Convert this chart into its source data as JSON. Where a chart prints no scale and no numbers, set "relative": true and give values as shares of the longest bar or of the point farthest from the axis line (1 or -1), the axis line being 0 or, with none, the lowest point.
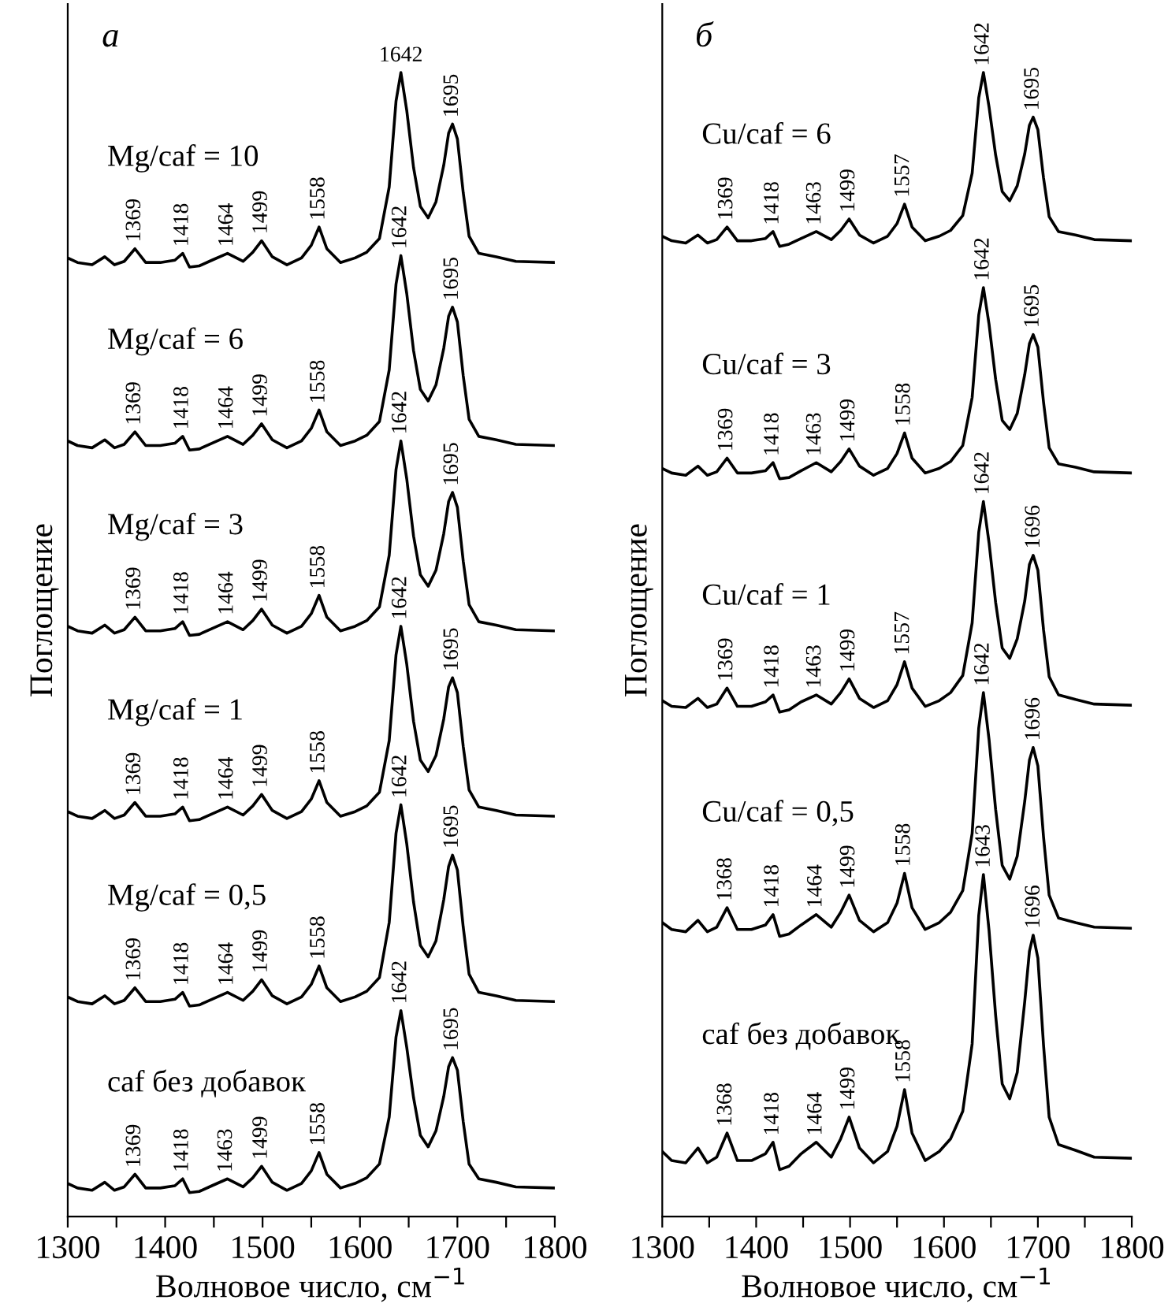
{
  "chart_data": [
    {
      "type": "line",
      "title": "а",
      "xlabel": "Волновое число, см$^{−1}$",
      "ylabel": "Поглощение",
      "relative": true,
      "xlim": [
        1300,
        1800
      ],
      "xticks": [
        1300,
        {
          "value": 1350,
          "label": null
        },
        1400,
        {
          "value": 1450,
          "label": null
        },
        1500,
        {
          "value": 1550,
          "label": null
        },
        1600,
        {
          "value": 1650,
          "label": null
        },
        1700,
        {
          "value": 1750,
          "label": null
        },
        1800
      ],
      "x": [
        1300,
        1310,
        1325,
        1338,
        1348,
        1358,
        1369,
        1380,
        1395,
        1410,
        1418,
        1425,
        1435,
        1448,
        1464,
        1480,
        1490,
        1499,
        1510,
        1525,
        1540,
        1550,
        1558,
        1566,
        1580,
        1595,
        1607,
        1620,
        1630,
        1637,
        1642,
        1648,
        1655,
        1662,
        1670,
        1678,
        1686,
        1691,
        1695,
        1700,
        1706,
        1712,
        1722,
        1740,
        1760,
        1800
      ],
      "series": [
        {
          "name": "Mg/caf = 10",
          "color": "#000000",
          "values": [
            0.838,
            0.834,
            0.832,
            0.839,
            0.832,
            0.835,
            0.846,
            0.834,
            0.834,
            0.836,
            0.842,
            0.83,
            0.831,
            0.836,
            0.842,
            0.835,
            0.843,
            0.853,
            0.839,
            0.832,
            0.838,
            0.849,
            0.865,
            0.846,
            0.834,
            0.838,
            0.843,
            0.855,
            0.9,
            0.975,
            1.0,
            0.967,
            0.917,
            0.883,
            0.873,
            0.887,
            0.919,
            0.947,
            0.955,
            0.942,
            0.895,
            0.857,
            0.842,
            0.839,
            0.835,
            0.834
          ]
        },
        {
          "name": "Mg/caf = 6",
          "color": "#000000",
          "values": [
            0.678,
            0.674,
            0.672,
            0.679,
            0.672,
            0.675,
            0.686,
            0.674,
            0.674,
            0.676,
            0.682,
            0.67,
            0.671,
            0.676,
            0.682,
            0.675,
            0.683,
            0.693,
            0.679,
            0.672,
            0.678,
            0.689,
            0.705,
            0.686,
            0.674,
            0.678,
            0.683,
            0.695,
            0.74,
            0.815,
            0.84,
            0.807,
            0.757,
            0.723,
            0.713,
            0.727,
            0.759,
            0.787,
            0.795,
            0.782,
            0.735,
            0.697,
            0.682,
            0.679,
            0.675,
            0.674
          ]
        },
        {
          "name": "Mg/caf = 3",
          "color": "#000000",
          "values": [
            0.516,
            0.512,
            0.51,
            0.517,
            0.51,
            0.513,
            0.524,
            0.512,
            0.512,
            0.514,
            0.52,
            0.508,
            0.509,
            0.514,
            0.52,
            0.513,
            0.521,
            0.531,
            0.517,
            0.51,
            0.516,
            0.527,
            0.543,
            0.524,
            0.512,
            0.516,
            0.521,
            0.533,
            0.578,
            0.653,
            0.678,
            0.645,
            0.595,
            0.561,
            0.551,
            0.565,
            0.597,
            0.625,
            0.633,
            0.62,
            0.573,
            0.535,
            0.52,
            0.517,
            0.513,
            0.512
          ]
        },
        {
          "name": "Mg/caf = 1",
          "color": "#000000",
          "values": [
            0.354,
            0.35,
            0.348,
            0.355,
            0.348,
            0.351,
            0.362,
            0.35,
            0.35,
            0.352,
            0.358,
            0.346,
            0.347,
            0.352,
            0.358,
            0.351,
            0.359,
            0.369,
            0.355,
            0.348,
            0.354,
            0.365,
            0.381,
            0.362,
            0.35,
            0.354,
            0.359,
            0.371,
            0.416,
            0.491,
            0.516,
            0.483,
            0.433,
            0.399,
            0.389,
            0.403,
            0.435,
            0.463,
            0.471,
            0.458,
            0.411,
            0.373,
            0.358,
            0.355,
            0.351,
            0.35
          ]
        },
        {
          "name": "Mg/caf = 0,5",
          "color": "#000000",
          "values": [
            0.192,
            0.188,
            0.186,
            0.193,
            0.186,
            0.189,
            0.2,
            0.188,
            0.188,
            0.19,
            0.196,
            0.184,
            0.185,
            0.19,
            0.196,
            0.189,
            0.197,
            0.207,
            0.193,
            0.186,
            0.192,
            0.203,
            0.219,
            0.2,
            0.188,
            0.192,
            0.197,
            0.209,
            0.257,
            0.335,
            0.36,
            0.326,
            0.275,
            0.237,
            0.227,
            0.241,
            0.277,
            0.306,
            0.316,
            0.303,
            0.253,
            0.212,
            0.196,
            0.193,
            0.189,
            0.188
          ]
        },
        {
          "name": "caf без добавок",
          "color": "#000000",
          "values": [
            0.029,
            0.025,
            0.023,
            0.03,
            0.023,
            0.026,
            0.037,
            0.025,
            0.025,
            0.027,
            0.033,
            0.021,
            0.022,
            0.027,
            0.033,
            0.026,
            0.034,
            0.044,
            0.03,
            0.023,
            0.029,
            0.04,
            0.056,
            0.037,
            0.025,
            0.029,
            0.034,
            0.046,
            0.087,
            0.157,
            0.18,
            0.148,
            0.104,
            0.071,
            0.061,
            0.075,
            0.105,
            0.131,
            0.139,
            0.128,
            0.083,
            0.046,
            0.033,
            0.03,
            0.026,
            0.025
          ]
        }
      ],
      "annotations": [
        {
          "text": "1369",
          "x": 1369,
          "y": 0.846
        },
        {
          "text": "1418",
          "x": 1418,
          "y": 0.842
        },
        {
          "text": "1464",
          "x": 1464,
          "y": 0.842
        },
        {
          "text": "1499",
          "x": 1499,
          "y": 0.853
        },
        {
          "text": "1558",
          "x": 1558,
          "y": 0.865
        },
        {
          "text": "1642",
          "x": 1642,
          "y": 1.0
        },
        {
          "text": "1695",
          "x": 1695,
          "y": 0.955
        },
        {
          "text": "1369",
          "x": 1369,
          "y": 0.686
        },
        {
          "text": "1418",
          "x": 1418,
          "y": 0.682
        },
        {
          "text": "1464",
          "x": 1464,
          "y": 0.682
        },
        {
          "text": "1499",
          "x": 1499,
          "y": 0.693
        },
        {
          "text": "1558",
          "x": 1558,
          "y": 0.705
        },
        {
          "text": "1642",
          "x": 1642,
          "y": 0.84
        },
        {
          "text": "1695",
          "x": 1695,
          "y": 0.795
        },
        {
          "text": "1369",
          "x": 1369,
          "y": 0.524
        },
        {
          "text": "1418",
          "x": 1418,
          "y": 0.52
        },
        {
          "text": "1464",
          "x": 1464,
          "y": 0.52
        },
        {
          "text": "1499",
          "x": 1499,
          "y": 0.531
        },
        {
          "text": "1558",
          "x": 1558,
          "y": 0.543
        },
        {
          "text": "1642",
          "x": 1642,
          "y": 0.678
        },
        {
          "text": "1695",
          "x": 1695,
          "y": 0.633
        },
        {
          "text": "1369",
          "x": 1369,
          "y": 0.362
        },
        {
          "text": "1418",
          "x": 1418,
          "y": 0.358
        },
        {
          "text": "1464",
          "x": 1464,
          "y": 0.358
        },
        {
          "text": "1499",
          "x": 1499,
          "y": 0.369
        },
        {
          "text": "1558",
          "x": 1558,
          "y": 0.381
        },
        {
          "text": "1642",
          "x": 1642,
          "y": 0.516
        },
        {
          "text": "1695",
          "x": 1695,
          "y": 0.471
        },
        {
          "text": "1369",
          "x": 1369,
          "y": 0.2
        },
        {
          "text": "1418",
          "x": 1418,
          "y": 0.196
        },
        {
          "text": "1464",
          "x": 1464,
          "y": 0.196
        },
        {
          "text": "1499",
          "x": 1499,
          "y": 0.207
        },
        {
          "text": "1558",
          "x": 1558,
          "y": 0.219
        },
        {
          "text": "1642",
          "x": 1642,
          "y": 0.36
        },
        {
          "text": "1695",
          "x": 1695,
          "y": 0.316
        },
        {
          "text": "1369",
          "x": 1369,
          "y": 0.037
        },
        {
          "text": "1418",
          "x": 1418,
          "y": 0.033
        },
        {
          "text": "1463",
          "x": 1463,
          "y": 0.033
        },
        {
          "text": "1499",
          "x": 1499,
          "y": 0.044
        },
        {
          "text": "1558",
          "x": 1558,
          "y": 0.056
        },
        {
          "text": "1642",
          "x": 1642,
          "y": 0.18
        },
        {
          "text": "1695",
          "x": 1695,
          "y": 0.139
        }
      ]
    },
    {
      "type": "line",
      "title": "б",
      "xlabel": "Волновое число, см$^{−1}$",
      "ylabel": "Поглощение",
      "relative": true,
      "xlim": [
        1300,
        1800
      ],
      "xticks": [
        1300,
        {
          "value": 1350,
          "label": null
        },
        1400,
        {
          "value": 1450,
          "label": null
        },
        1500,
        {
          "value": 1550,
          "label": null
        },
        1600,
        {
          "value": 1650,
          "label": null
        },
        1700,
        {
          "value": 1750,
          "label": null
        },
        1800
      ],
      "x": [
        1300,
        1310,
        1325,
        1338,
        1348,
        1358,
        1369,
        1380,
        1395,
        1410,
        1418,
        1425,
        1435,
        1448,
        1464,
        1480,
        1490,
        1499,
        1510,
        1525,
        1540,
        1550,
        1558,
        1566,
        1580,
        1595,
        1607,
        1620,
        1630,
        1637,
        1642,
        1648,
        1655,
        1662,
        1670,
        1678,
        1686,
        1691,
        1695,
        1700,
        1706,
        1712,
        1722,
        1740,
        1760,
        1800
      ],
      "series": [
        {
          "name": "Cu/caf = 6",
          "color": "#000000",
          "values": [
            0.857,
            0.853,
            0.851,
            0.858,
            0.851,
            0.854,
            0.865,
            0.853,
            0.853,
            0.855,
            0.861,
            0.848,
            0.85,
            0.855,
            0.861,
            0.854,
            0.862,
            0.872,
            0.858,
            0.851,
            0.857,
            0.868,
            0.885,
            0.865,
            0.853,
            0.857,
            0.862,
            0.875,
            0.912,
            0.978,
            1.0,
            0.97,
            0.928,
            0.896,
            0.888,
            0.901,
            0.929,
            0.954,
            0.961,
            0.95,
            0.908,
            0.874,
            0.861,
            0.858,
            0.854,
            0.853
          ]
        },
        {
          "name": "Cu/caf = 3",
          "color": "#000000",
          "values": [
            0.654,
            0.65,
            0.648,
            0.656,
            0.648,
            0.651,
            0.663,
            0.65,
            0.65,
            0.652,
            0.659,
            0.645,
            0.646,
            0.652,
            0.659,
            0.651,
            0.66,
            0.671,
            0.656,
            0.648,
            0.654,
            0.667,
            0.685,
            0.663,
            0.65,
            0.654,
            0.66,
            0.674,
            0.716,
            0.788,
            0.812,
            0.78,
            0.732,
            0.696,
            0.688,
            0.702,
            0.736,
            0.763,
            0.771,
            0.76,
            0.712,
            0.672,
            0.658,
            0.655,
            0.651,
            0.65
          ]
        },
        {
          "name": "Cu/caf = 1",
          "color": "#000000",
          "values": [
            0.451,
            0.446,
            0.445,
            0.453,
            0.445,
            0.448,
            0.462,
            0.446,
            0.446,
            0.45,
            0.456,
            0.441,
            0.443,
            0.45,
            0.456,
            0.448,
            0.458,
            0.47,
            0.453,
            0.445,
            0.451,
            0.465,
            0.485,
            0.462,
            0.446,
            0.451,
            0.458,
            0.473,
            0.519,
            0.598,
            0.625,
            0.589,
            0.537,
            0.497,
            0.488,
            0.505,
            0.538,
            0.57,
            0.578,
            0.565,
            0.513,
            0.472,
            0.456,
            0.452,
            0.448,
            0.447
          ]
        },
        {
          "name": "Cu/caf = 0,5",
          "color": "#000000",
          "values": [
            0.257,
            0.251,
            0.249,
            0.259,
            0.249,
            0.253,
            0.27,
            0.251,
            0.251,
            0.255,
            0.264,
            0.245,
            0.247,
            0.255,
            0.264,
            0.253,
            0.266,
            0.281,
            0.259,
            0.249,
            0.257,
            0.274,
            0.3,
            0.27,
            0.251,
            0.257,
            0.266,
            0.285,
            0.335,
            0.427,
            0.458,
            0.417,
            0.356,
            0.307,
            0.295,
            0.315,
            0.363,
            0.399,
            0.41,
            0.394,
            0.332,
            0.281,
            0.261,
            0.257,
            0.253,
            0.252
          ]
        },
        {
          "name": "caf без добавок",
          "color": "#000000",
          "values": [
            0.057,
            0.049,
            0.047,
            0.06,
            0.047,
            0.052,
            0.073,
            0.049,
            0.049,
            0.055,
            0.065,
            0.041,
            0.044,
            0.055,
            0.065,
            0.052,
            0.068,
            0.087,
            0.06,
            0.047,
            0.057,
            0.079,
            0.111,
            0.073,
            0.049,
            0.057,
            0.068,
            0.092,
            0.151,
            0.263,
            0.299,
            0.25,
            0.176,
            0.116,
            0.103,
            0.126,
            0.188,
            0.232,
            0.246,
            0.226,
            0.15,
            0.087,
            0.063,
            0.058,
            0.052,
            0.051
          ]
        }
      ],
      "annotations": [
        {
          "text": "1369",
          "x": 1369,
          "y": 0.865
        },
        {
          "text": "1418",
          "x": 1418,
          "y": 0.861
        },
        {
          "text": "1463",
          "x": 1463,
          "y": 0.861
        },
        {
          "text": "1499",
          "x": 1499,
          "y": 0.872
        },
        {
          "text": "1557",
          "x": 1557,
          "y": 0.885
        },
        {
          "text": "1642",
          "x": 1642,
          "y": 1.0
        },
        {
          "text": "1695",
          "x": 1695,
          "y": 0.961
        },
        {
          "text": "1369",
          "x": 1369,
          "y": 0.663
        },
        {
          "text": "1418",
          "x": 1418,
          "y": 0.659
        },
        {
          "text": "1463",
          "x": 1463,
          "y": 0.659
        },
        {
          "text": "1499",
          "x": 1499,
          "y": 0.671
        },
        {
          "text": "1558",
          "x": 1558,
          "y": 0.685
        },
        {
          "text": "1642",
          "x": 1642,
          "y": 0.812
        },
        {
          "text": "1695",
          "x": 1695,
          "y": 0.771
        },
        {
          "text": "1369",
          "x": 1369,
          "y": 0.462
        },
        {
          "text": "1418",
          "x": 1418,
          "y": 0.456
        },
        {
          "text": "1463",
          "x": 1463,
          "y": 0.456
        },
        {
          "text": "1499",
          "x": 1499,
          "y": 0.47
        },
        {
          "text": "1557",
          "x": 1557,
          "y": 0.485
        },
        {
          "text": "1642",
          "x": 1642,
          "y": 0.625
        },
        {
          "text": "1696",
          "x": 1696,
          "y": 0.578
        },
        {
          "text": "1368",
          "x": 1368,
          "y": 0.27
        },
        {
          "text": "1418",
          "x": 1418,
          "y": 0.264
        },
        {
          "text": "1464",
          "x": 1464,
          "y": 0.264
        },
        {
          "text": "1499",
          "x": 1499,
          "y": 0.281
        },
        {
          "text": "1558",
          "x": 1558,
          "y": 0.3
        },
        {
          "text": "1642",
          "x": 1642,
          "y": 0.458
        },
        {
          "text": "1696",
          "x": 1696,
          "y": 0.41
        },
        {
          "text": "1368",
          "x": 1368,
          "y": 0.073
        },
        {
          "text": "1418",
          "x": 1418,
          "y": 0.065
        },
        {
          "text": "1464",
          "x": 1464,
          "y": 0.065
        },
        {
          "text": "1499",
          "x": 1499,
          "y": 0.087
        },
        {
          "text": "1558",
          "x": 1558,
          "y": 0.111
        },
        {
          "text": "1643",
          "x": 1643,
          "y": 0.299
        },
        {
          "text": "1696",
          "x": 1696,
          "y": 0.246
        }
      ]
    }
  ]
}
